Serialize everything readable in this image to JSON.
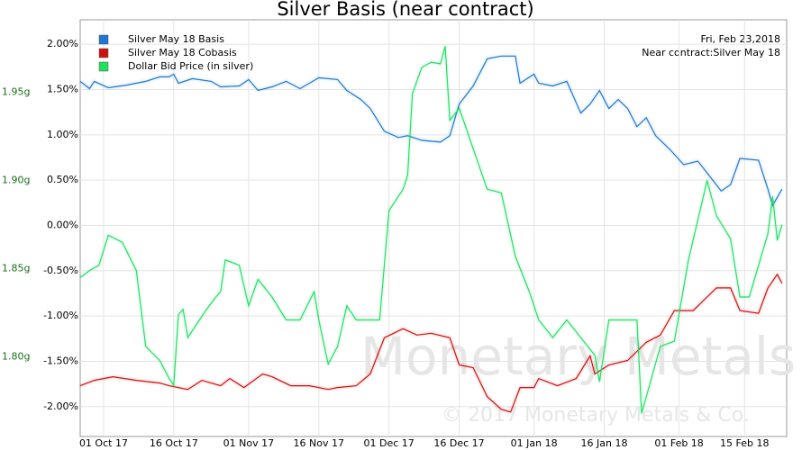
{
  "chart_data": {
    "type": "line",
    "title": "Silver Basis (near contract)",
    "annotations": [
      "Fri, Feb 23,2018",
      "Near contract:Silver May 18"
    ],
    "watermark": [
      "Monetary Metals",
      "© 2017 Monetary Metals & Co."
    ],
    "grid": true,
    "legend": "upper left",
    "xlim": [
      "2017-09-26",
      "2018-02-24"
    ],
    "xticks": [
      {
        "value": "2017-10-01",
        "label": "01 Oct 17"
      },
      {
        "value": "2017-10-16",
        "label": "16 Oct 17"
      },
      {
        "value": "2017-11-01",
        "label": "01 Nov 17"
      },
      {
        "value": "2017-11-16",
        "label": "16 Nov 17"
      },
      {
        "value": "2017-12-01",
        "label": "01 Dec 17"
      },
      {
        "value": "2017-12-16",
        "label": "16 Dec 17"
      },
      {
        "value": "2018-01-01",
        "label": "01 Jan 18"
      },
      {
        "value": "2018-01-16",
        "label": "16 Jan 18"
      },
      {
        "value": "2018-02-01",
        "label": "01 Feb 18"
      },
      {
        "value": "2018-02-15",
        "label": "15 Feb 18"
      }
    ],
    "ylim": [
      -2.33,
      2.27
    ],
    "yticks": [
      {
        "value": 2,
        "label": "2.00%"
      },
      {
        "value": 1.5,
        "label": "1.50%"
      },
      {
        "value": 1,
        "label": "1.00%"
      },
      {
        "value": 0.5,
        "label": "0.50%"
      },
      {
        "value": 0,
        "label": "0.00%"
      },
      {
        "value": -0.5,
        "label": "-0.50%"
      },
      {
        "value": -1,
        "label": "-1.00%"
      },
      {
        "value": -1.5,
        "label": "-1.50%"
      },
      {
        "value": -2,
        "label": "-2.00%"
      }
    ],
    "y2lim": [
      1.755,
      1.991
    ],
    "y2ticks": [
      {
        "value": 1.95,
        "label": "1.95g"
      },
      {
        "value": 1.9,
        "label": "1.90g"
      },
      {
        "value": 1.85,
        "label": "1.85g"
      },
      {
        "value": 1.8,
        "label": "1.80g"
      }
    ],
    "series": [
      {
        "name": "Silver May 18 Basis",
        "color": "#1f77d0",
        "x": [
          "2017-09-26",
          "2017-09-28",
          "2017-09-29",
          "2017-10-02",
          "2017-10-06",
          "2017-10-10",
          "2017-10-13",
          "2017-10-15",
          "2017-10-16",
          "2017-10-17",
          "2017-10-20",
          "2017-10-24",
          "2017-10-26",
          "2017-10-30",
          "2017-11-01",
          "2017-11-03",
          "2017-11-06",
          "2017-11-09",
          "2017-11-12",
          "2017-11-16",
          "2017-11-20",
          "2017-11-22",
          "2017-11-25",
          "2017-11-27",
          "2017-11-30",
          "2017-12-03",
          "2017-12-05",
          "2017-12-08",
          "2017-12-12",
          "2017-12-14",
          "2017-12-16",
          "2017-12-19",
          "2017-12-22",
          "2017-12-25",
          "2017-12-28",
          "2017-12-29",
          "2018-01-01",
          "2018-01-02",
          "2018-01-05",
          "2018-01-08",
          "2018-01-11",
          "2018-01-13",
          "2018-01-15",
          "2018-01-17",
          "2018-01-19",
          "2018-01-21",
          "2018-01-23",
          "2018-01-25",
          "2018-01-27",
          "2018-01-30",
          "2018-02-02",
          "2018-02-05",
          "2018-02-07",
          "2018-02-10",
          "2018-02-12",
          "2018-02-14",
          "2018-02-18",
          "2018-02-20",
          "2018-02-21",
          "2018-02-23"
        ],
        "values": [
          1.59,
          1.51,
          1.59,
          1.52,
          1.55,
          1.59,
          1.64,
          1.64,
          1.67,
          1.57,
          1.62,
          1.59,
          1.53,
          1.54,
          1.61,
          1.49,
          1.53,
          1.59,
          1.51,
          1.63,
          1.61,
          1.49,
          1.39,
          1.29,
          1.04,
          0.97,
          0.99,
          0.94,
          0.92,
          0.99,
          1.34,
          1.54,
          1.84,
          1.87,
          1.87,
          1.57,
          1.67,
          1.57,
          1.54,
          1.59,
          1.24,
          1.34,
          1.49,
          1.29,
          1.39,
          1.29,
          1.09,
          1.19,
          0.99,
          0.84,
          0.67,
          0.71,
          0.58,
          0.38,
          0.45,
          0.74,
          0.72,
          0.4,
          0.22,
          0.4
        ]
      },
      {
        "name": "Silver May 18 Cobasis",
        "color": "#d01010",
        "x": [
          "2017-09-26",
          "2017-09-29",
          "2017-10-03",
          "2017-10-08",
          "2017-10-13",
          "2017-10-15",
          "2017-10-19",
          "2017-10-22",
          "2017-10-26",
          "2017-10-28",
          "2017-10-31",
          "2017-11-04",
          "2017-11-06",
          "2017-11-10",
          "2017-11-14",
          "2017-11-18",
          "2017-11-20",
          "2017-11-24",
          "2017-11-27",
          "2017-11-30",
          "2017-12-04",
          "2017-12-07",
          "2017-12-10",
          "2017-12-14",
          "2017-12-16",
          "2017-12-19",
          "2017-12-22",
          "2017-12-25",
          "2017-12-27",
          "2017-12-29",
          "2018-01-01",
          "2018-01-02",
          "2018-01-06",
          "2018-01-10",
          "2018-01-13",
          "2018-01-14",
          "2018-01-17",
          "2018-01-21",
          "2018-01-25",
          "2018-01-28",
          "2018-01-31",
          "2018-02-04",
          "2018-02-07",
          "2018-02-09",
          "2018-02-12",
          "2018-02-14",
          "2018-02-18",
          "2018-02-20",
          "2018-02-22",
          "2018-02-23"
        ],
        "values": [
          -1.77,
          -1.71,
          -1.67,
          -1.71,
          -1.74,
          -1.77,
          -1.81,
          -1.71,
          -1.77,
          -1.69,
          -1.79,
          -1.64,
          -1.67,
          -1.77,
          -1.77,
          -1.81,
          -1.79,
          -1.77,
          -1.64,
          -1.24,
          -1.14,
          -1.21,
          -1.19,
          -1.24,
          -1.54,
          -1.57,
          -1.89,
          -2.03,
          -2.06,
          -1.79,
          -1.79,
          -1.69,
          -1.77,
          -1.69,
          -1.44,
          -1.64,
          -1.54,
          -1.49,
          -1.29,
          -1.21,
          -0.94,
          -0.94,
          -0.79,
          -0.69,
          -0.69,
          -0.94,
          -0.97,
          -0.69,
          -0.54,
          -0.64
        ]
      },
      {
        "name": "Dollar Bid Price (in silver)",
        "color": "#22e060",
        "axis": "y2",
        "x": [
          "2017-09-26",
          "2017-09-28",
          "2017-09-30",
          "2017-10-02",
          "2017-10-05",
          "2017-10-08",
          "2017-10-10",
          "2017-10-13",
          "2017-10-15",
          "2017-10-16",
          "2017-10-17",
          "2017-10-18",
          "2017-10-19",
          "2017-10-23",
          "2017-10-25",
          "2017-10-26",
          "2017-10-27",
          "2017-10-30",
          "2017-11-01",
          "2017-11-03",
          "2017-11-06",
          "2017-11-09",
          "2017-11-12",
          "2017-11-15",
          "2017-11-16",
          "2017-11-18",
          "2017-11-20",
          "2017-11-22",
          "2017-11-24",
          "2017-11-29",
          "2017-12-01",
          "2017-12-04",
          "2017-12-05",
          "2017-12-06",
          "2017-12-08",
          "2017-12-10",
          "2017-12-12",
          "2017-12-13",
          "2017-12-14",
          "2017-12-16",
          "2017-12-19",
          "2017-12-22",
          "2017-12-25",
          "2017-12-28",
          "2017-12-31",
          "2018-01-02",
          "2018-01-05",
          "2018-01-08",
          "2018-01-11",
          "2018-01-14",
          "2018-01-15",
          "2018-01-17",
          "2018-01-20",
          "2018-01-23",
          "2018-01-24",
          "2018-01-28",
          "2018-01-31",
          "2018-02-03",
          "2018-02-07",
          "2018-02-09",
          "2018-02-12",
          "2018-02-14",
          "2018-02-16",
          "2018-02-20",
          "2018-02-21",
          "2018-02-22",
          "2018-02-23"
        ],
        "values": [
          1.845,
          1.849,
          1.852,
          1.869,
          1.865,
          1.849,
          1.806,
          1.798,
          1.788,
          1.784,
          1.824,
          1.827,
          1.811,
          1.827,
          1.834,
          1.837,
          1.855,
          1.852,
          1.829,
          1.844,
          1.834,
          1.821,
          1.821,
          1.837,
          1.821,
          1.796,
          1.806,
          1.829,
          1.821,
          1.821,
          1.883,
          1.895,
          1.903,
          1.949,
          1.964,
          1.967,
          1.966,
          1.976,
          1.934,
          1.941,
          1.918,
          1.895,
          1.893,
          1.857,
          1.837,
          1.821,
          1.811,
          1.821,
          1.811,
          1.801,
          1.786,
          1.821,
          1.821,
          1.821,
          1.768,
          1.806,
          1.809,
          1.855,
          1.9,
          1.88,
          1.867,
          1.834,
          1.834,
          1.87,
          1.891,
          1.866,
          1.875
        ]
      }
    ]
  }
}
